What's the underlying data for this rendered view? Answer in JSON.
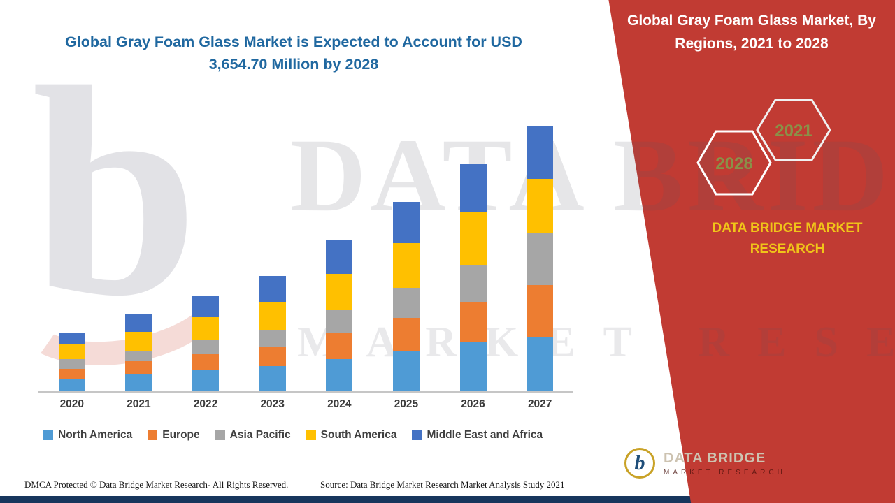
{
  "title_left": {
    "line1": "Global Gray Foam Glass Market is Expected to Account for USD",
    "line2": "3,654.70 Million by 2028"
  },
  "panel": {
    "title": "Global Gray Foam Glass Market, By Regions, 2021 to 2028",
    "hex_front": "2028",
    "hex_back": "2021",
    "brand_name": "DATA BRIDGE MARKET RESEARCH",
    "accent_red": "#C13B33",
    "accent_gold": "#F0C419"
  },
  "logo": {
    "letter": "b",
    "text_main": "DATA BRIDGE",
    "text_sub": "MARKET RESEARCH"
  },
  "watermark": {
    "line1": "DATA BRIDGE",
    "line2": "MARKET RESEARCH",
    "letter": "b"
  },
  "footer": {
    "dmca": "DMCA Protected © Data Bridge Market Research- All Rights Reserved.",
    "source": "Source: Data Bridge Market Research Market Analysis Study 2021"
  },
  "chart_data": {
    "type": "bar",
    "stacked": true,
    "title": "Global Gray Foam Glass Market is Expected to Account for USD 3,654.70 Million by 2028",
    "unit": "USD Million",
    "categories": [
      "2020",
      "2021",
      "2022",
      "2023",
      "2024",
      "2025",
      "2026",
      "2027"
    ],
    "series": [
      {
        "name": "North America",
        "color": "#4F9BD5",
        "values": [
          150,
          210,
          260,
          310,
          400,
          500,
          610,
          680
        ]
      },
      {
        "name": "Europe",
        "color": "#ED7D31",
        "values": [
          130,
          160,
          200,
          240,
          320,
          410,
          500,
          640
        ]
      },
      {
        "name": "Asia Pacific",
        "color": "#A6A6A6",
        "values": [
          115,
          130,
          170,
          210,
          290,
          370,
          450,
          650
        ]
      },
      {
        "name": "South America",
        "color": "#FFC000",
        "values": [
          185,
          235,
          290,
          350,
          450,
          560,
          660,
          670
        ]
      },
      {
        "name": "Middle East and Africa",
        "color": "#4472C4",
        "values": [
          150,
          225,
          270,
          320,
          420,
          510,
          600,
          650
        ]
      }
    ],
    "ylim": [
      0,
      3400
    ],
    "xlabel": "",
    "ylabel": "",
    "grid": false,
    "legend_position": "bottom"
  }
}
